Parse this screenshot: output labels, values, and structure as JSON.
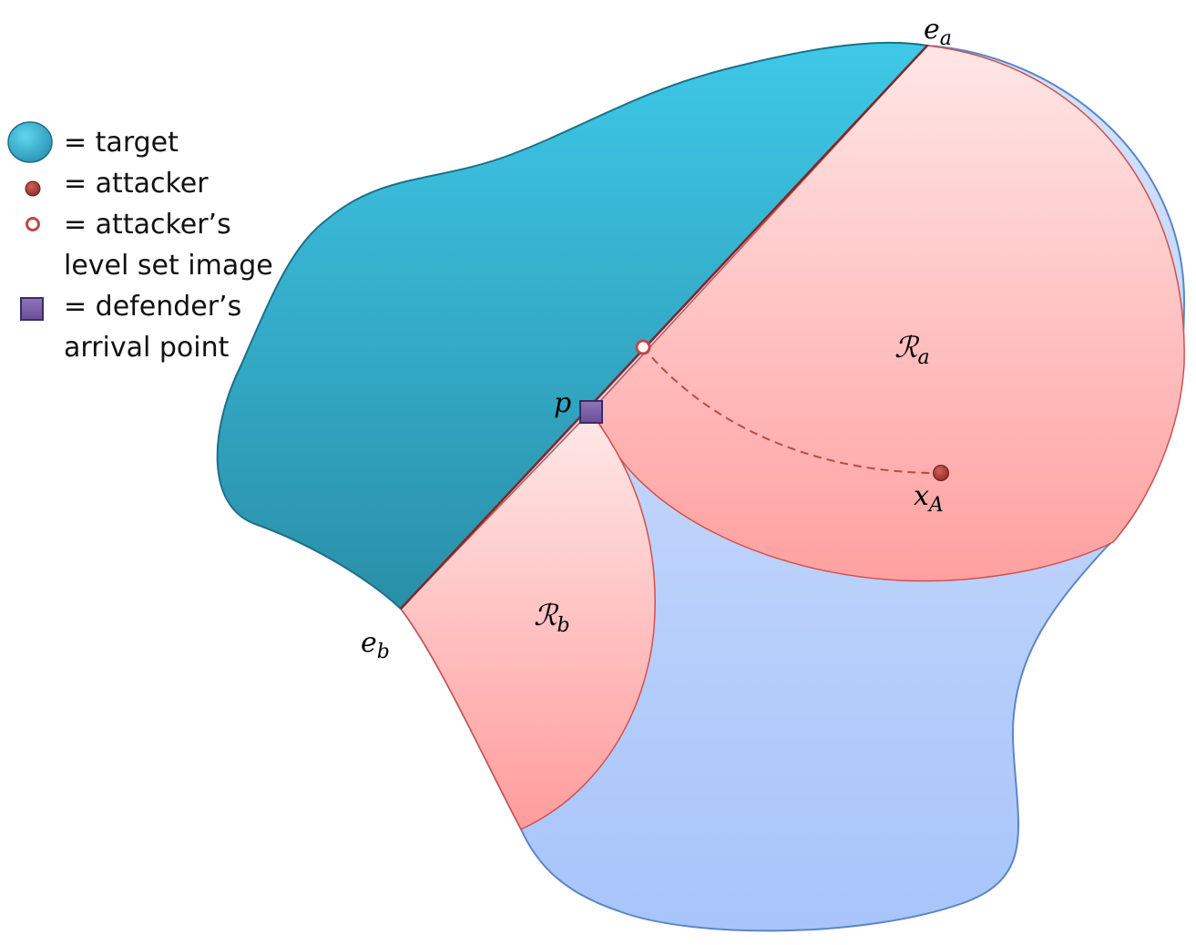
{
  "legend": {
    "target": "= target",
    "attacker": "= attacker",
    "level_set_line1": "= attacker’s",
    "level_set_line2": "level set image",
    "defender_line1": "= defender’s",
    "defender_line2": "arrival point"
  },
  "labels": {
    "e_a": {
      "main": "e",
      "sub": "a"
    },
    "e_b": {
      "main": "e",
      "sub": "b"
    },
    "p": "p",
    "x_A": {
      "main": "x",
      "sub": "A"
    },
    "R_a": {
      "main": "ℛ",
      "sub": "a"
    },
    "R_b": {
      "main": "ℛ",
      "sub": "b"
    }
  },
  "colors": {
    "target": "#2e9ab8",
    "attacker": "#b5403a",
    "region_pink": "#ffb6b6",
    "domain_blue": "#b8d0fa",
    "defender": "#7b5ea7"
  }
}
